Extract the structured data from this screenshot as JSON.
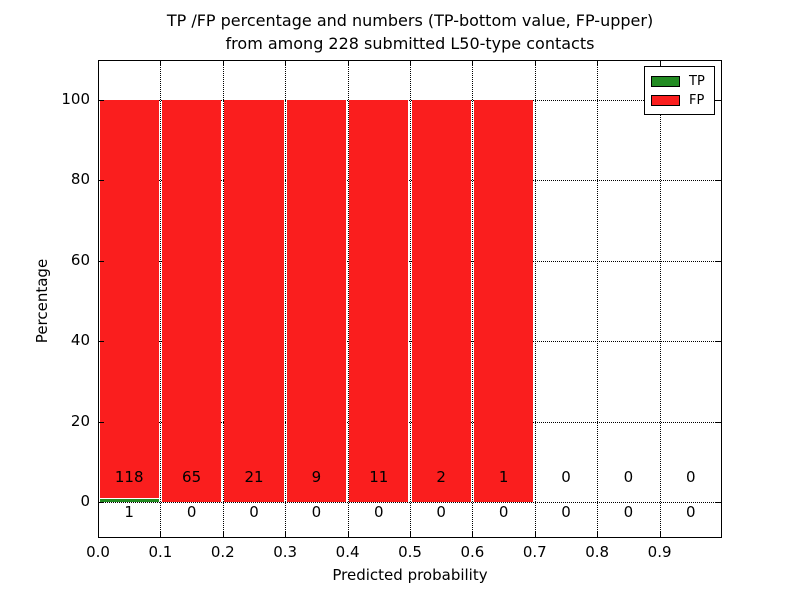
{
  "title": {
    "line1": "TP /FP percentage and numbers (TP-bottom value, FP-upper)",
    "line2": "from among 228 submitted L50-type contacts"
  },
  "chart_data": {
    "type": "bar",
    "stacked": true,
    "title": "TP /FP percentage and numbers (TP-bottom value, FP-upper)\nfrom among 228 submitted L50-type contacts",
    "xlabel": "Predicted probability",
    "ylabel": "Percentage",
    "xlim": [
      0.0,
      1.0
    ],
    "ylim": [
      -9,
      110
    ],
    "grid": "dotted",
    "legend_position": "upper right",
    "bins": {
      "starts": [
        0.0,
        0.1,
        0.2,
        0.3,
        0.4,
        0.5,
        0.6,
        0.7,
        0.8,
        0.9
      ],
      "width": 0.1
    },
    "x_tick_labels": [
      "0.0",
      "0.1",
      "0.2",
      "0.3",
      "0.4",
      "0.5",
      "0.6",
      "0.7",
      "0.8",
      "0.9"
    ],
    "y_ticks": [
      0,
      20,
      40,
      60,
      80,
      100
    ],
    "series": [
      {
        "name": "TP",
        "color": "#228B22",
        "counts": [
          1,
          0,
          0,
          0,
          0,
          0,
          0,
          0,
          0,
          0
        ],
        "percent": [
          0.84,
          0,
          0,
          0,
          0,
          0,
          0,
          0,
          0,
          0
        ]
      },
      {
        "name": "FP",
        "color": "#FA1E1E",
        "counts": [
          118,
          65,
          21,
          9,
          11,
          2,
          1,
          0,
          0,
          0
        ],
        "percent": [
          99.16,
          100,
          100,
          100,
          100,
          100,
          100,
          0,
          0,
          0
        ]
      }
    ]
  }
}
